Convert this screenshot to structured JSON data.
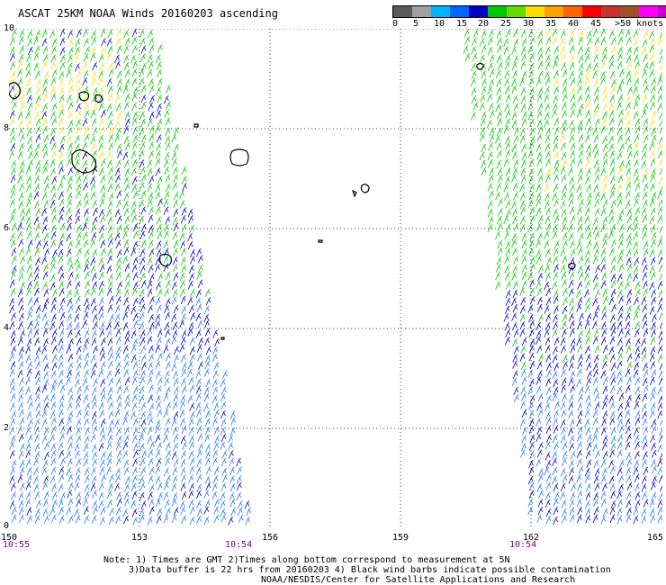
{
  "title": "ASCAT 25KM NOAA Winds 20160203 ascending",
  "legend": {
    "colors": [
      "#5a5a5a",
      "#a0a0a0",
      "#00b4ff",
      "#0064ff",
      "#0000c8",
      "#00c800",
      "#64dc00",
      "#ffdc00",
      "#ffa000",
      "#ff6400",
      "#ff0000",
      "#c83232",
      "#a05028",
      "#ff00ff",
      "#c800c8",
      "#640096"
    ],
    "labels": [
      "0",
      "5",
      "10",
      "15",
      "20",
      "25",
      "30",
      "35",
      "40",
      "45",
      ">50 knots"
    ]
  },
  "axes": {
    "y_labels": [
      "10",
      "8",
      "6",
      "4",
      "2",
      "0"
    ],
    "x_labels": [
      "150",
      "153",
      "156",
      "159",
      "162",
      "165"
    ],
    "time_labels": [
      "10:55",
      "10:54",
      "10:54"
    ]
  },
  "notes": {
    "line1": "Note: 1) Times are GMT 2)Times along bottom correspond to measurement at 5N",
    "line2": "3)Data buffer is 22 hrs from 20160203 4) Black wind barbs indicate possible contamination",
    "line3": "NOAA/NESDIS/Center for Satellite Applications and Research"
  },
  "map": {
    "lon_range": [
      150,
      165
    ],
    "lat_range": [
      0,
      10
    ],
    "wind_colors": {
      "light_blue": "#1e78ff",
      "dark_blue": "#0000c8",
      "green": "#00c800",
      "yellow": "#ffdc00",
      "black": "#000000"
    }
  }
}
